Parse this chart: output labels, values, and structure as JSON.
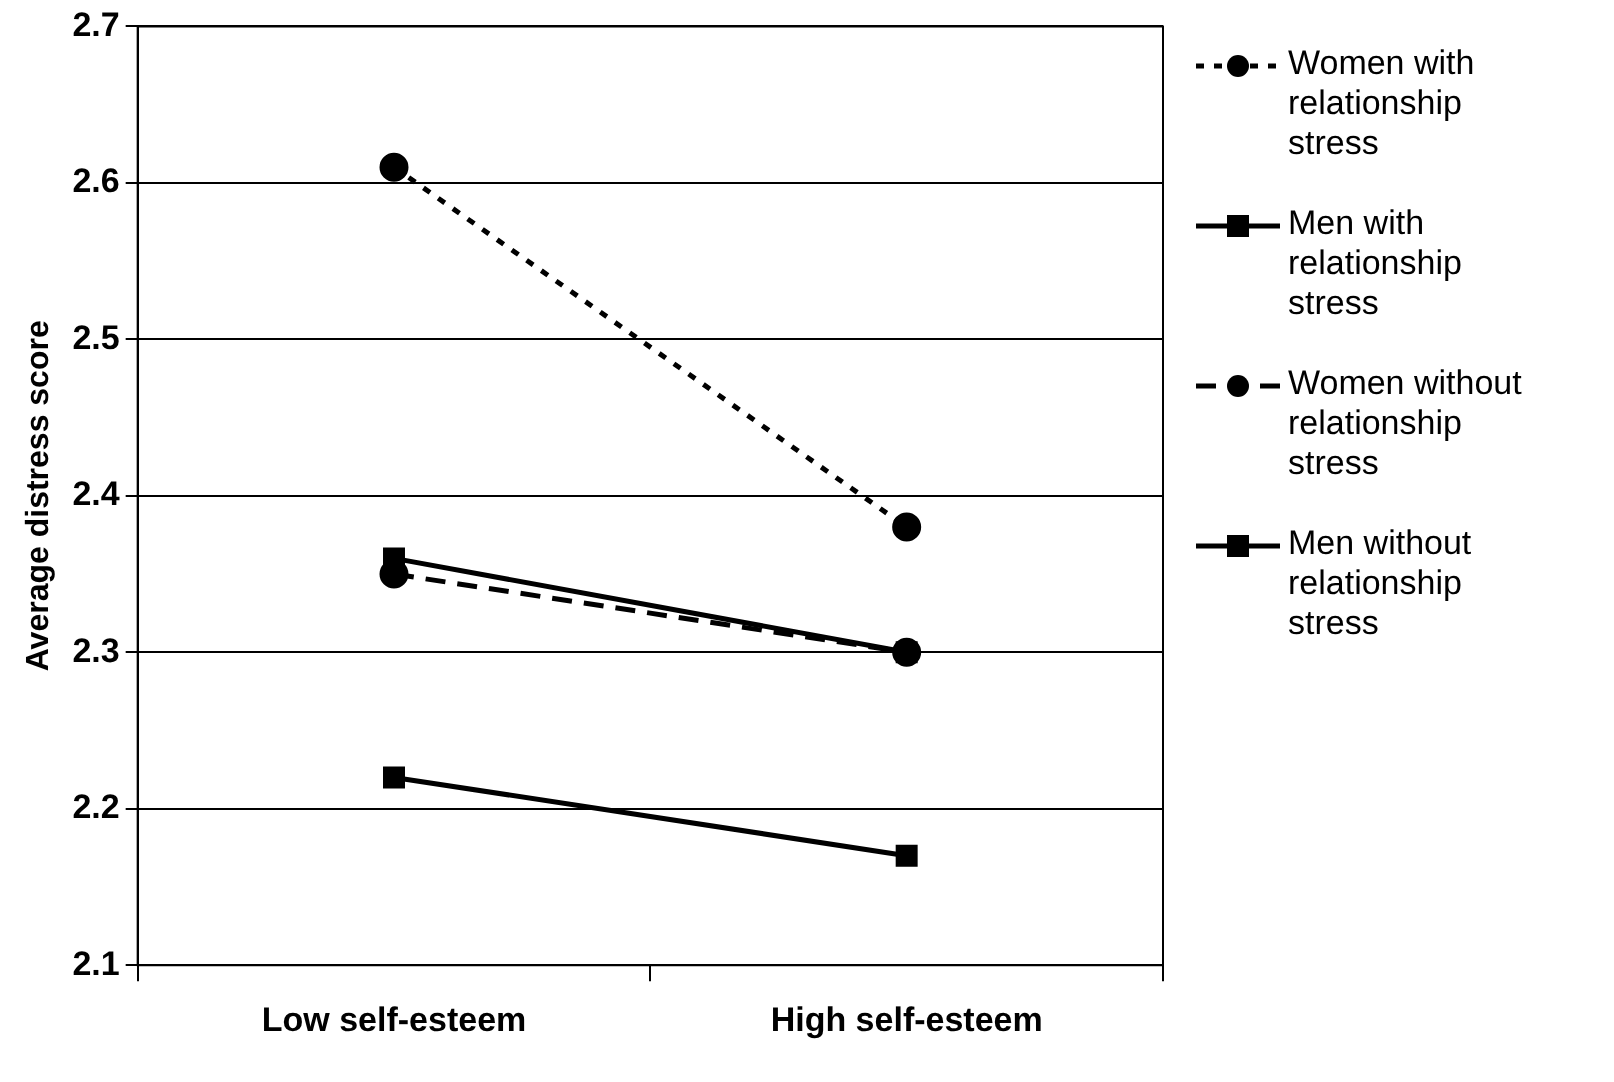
{
  "chart_data": {
    "type": "line",
    "ylabel": "Average distress score",
    "categories": [
      "Low self-esteem",
      "High self-esteem"
    ],
    "series": [
      {
        "name": "Women with relationship stress",
        "color": "#000000",
        "values": [
          2.61,
          2.38
        ],
        "marker": "circle",
        "line_style": "dotted"
      },
      {
        "name": "Men with relationship stress",
        "color": "#000000",
        "values": [
          2.36,
          2.3
        ],
        "marker": "square",
        "line_style": "solid"
      },
      {
        "name": "Women without relationship stress",
        "color": "#000000",
        "values": [
          2.35,
          2.3
        ],
        "marker": "circle",
        "line_style": "dashed"
      },
      {
        "name": "Men without relationship stress",
        "color": "#000000",
        "values": [
          2.22,
          2.17
        ],
        "marker": "square",
        "line_style": "solid"
      }
    ],
    "ylim": [
      2.1,
      2.7
    ],
    "yticks": [
      2.1,
      2.2,
      2.3,
      2.4,
      2.5,
      2.6,
      2.7
    ],
    "grid": "y",
    "legend": "right"
  }
}
